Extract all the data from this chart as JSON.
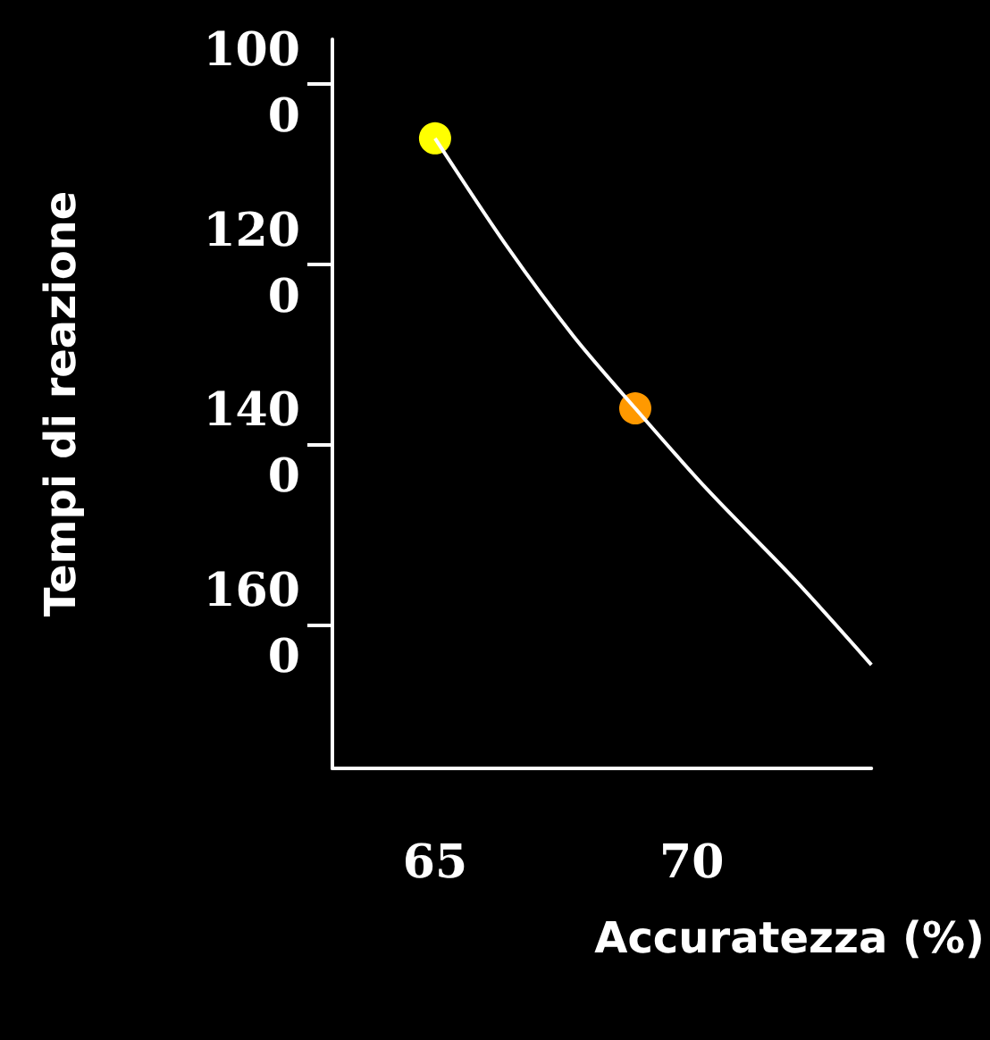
{
  "chart_data": {
    "type": "line",
    "xlabel": "Accuratezza (%)",
    "ylabel": "Tempi di reazione",
    "xlim": [
      63,
      73.5
    ],
    "ylim": [
      1760,
      950
    ],
    "xticks": [
      65,
      70
    ],
    "yticks": [
      1000,
      1200,
      1400,
      1600
    ],
    "grid": false,
    "series": [
      {
        "color": "#ffffff",
        "marker": "none",
        "x": [
          65,
          66.4,
          67.7,
          68.9,
          70.3,
          72,
          73.5
        ],
        "values": [
          1060,
          1180,
          1280,
          1360,
          1450,
          1550,
          1645
        ]
      },
      {
        "type": "scatter",
        "marker": "circle",
        "colors": [
          "#ffff00",
          "#ff9900"
        ],
        "x": [
          65,
          68.9
        ],
        "values": [
          1060,
          1360
        ]
      }
    ]
  }
}
